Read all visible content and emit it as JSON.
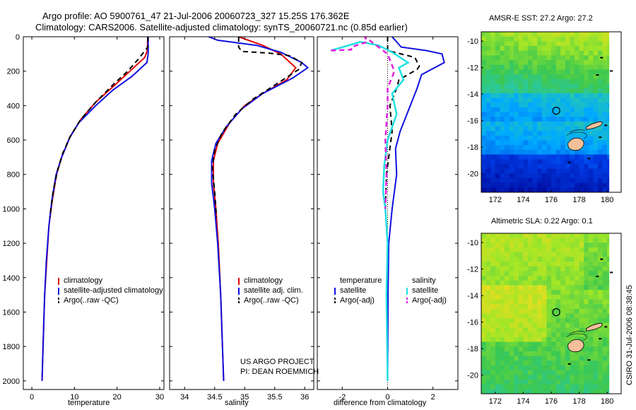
{
  "header": {
    "title_line1": "Argo profile: AO 5900761_47 21-Jul-2006 20060723_327 15.25S 176.362E",
    "title_line2": "Climatology: CARS2006. Satellite-adjusted climatology: synTS_20060721.nc (0.85d earlier)"
  },
  "credit": {
    "line1": "US ARGO PROJECT",
    "line2": "PI: DEAN ROEMMICH",
    "timestamp": "CSIRO 31-Jul-2006 08:38:45"
  },
  "colors": {
    "climatology": "#e00000",
    "satellite": "#1010e0",
    "argo": "#000000",
    "sat_sal": "#20e0e0",
    "argo_sal": "#e020e0",
    "land": "#f4c09a"
  },
  "chart_data": [
    {
      "type": "line",
      "name": "temperature-profile",
      "xlabel": "temperature",
      "ylabel": "",
      "xlim": [
        -2,
        31
      ],
      "ylim": [
        2050,
        0
      ],
      "y_reversed": true,
      "xticks": [
        0,
        10,
        20,
        30
      ],
      "yticks": [
        0,
        200,
        400,
        600,
        800,
        1000,
        1200,
        1400,
        1600,
        1800,
        2000
      ],
      "legend": [
        "climatology",
        "satellite-adjusted climatology",
        "Argo(..raw -QC)"
      ],
      "series": [
        {
          "name": "climatology",
          "points": [
            [
              27.2,
              0
            ],
            [
              27.1,
              80
            ],
            [
              26.5,
              120
            ],
            [
              23,
              200
            ],
            [
              19.5,
              280
            ],
            [
              15,
              380
            ],
            [
              11.5,
              480
            ],
            [
              9,
              580
            ],
            [
              7,
              700
            ],
            [
              5.8,
              800
            ],
            [
              4.8,
              950
            ],
            [
              4,
              1100
            ],
            [
              3.5,
              1300
            ],
            [
              3,
              1500
            ],
            [
              2.7,
              1750
            ],
            [
              2.4,
              2000
            ]
          ]
        },
        {
          "name": "satellite-adjusted climatology",
          "points": [
            [
              27.3,
              0
            ],
            [
              27.3,
              100
            ],
            [
              27,
              150
            ],
            [
              23.5,
              230
            ],
            [
              19,
              310
            ],
            [
              15,
              400
            ],
            [
              11,
              500
            ],
            [
              8.8,
              590
            ],
            [
              7,
              700
            ],
            [
              5.7,
              800
            ],
            [
              4.7,
              950
            ],
            [
              4,
              1100
            ],
            [
              3.4,
              1300
            ],
            [
              3,
              1500
            ],
            [
              2.7,
              1750
            ],
            [
              2.4,
              2000
            ]
          ]
        },
        {
          "name": "Argo(..raw -QC)",
          "points": [
            [
              27.2,
              0
            ],
            [
              27.2,
              60
            ],
            [
              25,
              130
            ],
            [
              22.5,
              200
            ],
            [
              19,
              280
            ],
            [
              15,
              380
            ],
            [
              11.5,
              480
            ],
            [
              9,
              580
            ],
            [
              7.2,
              680
            ],
            [
              6,
              780
            ],
            [
              5,
              900
            ],
            [
              4.2,
              1050
            ]
          ]
        }
      ]
    },
    {
      "type": "line",
      "name": "salinity-profile",
      "xlabel": "salinity",
      "ylabel": "",
      "xlim": [
        33.75,
        36.15
      ],
      "ylim": [
        2050,
        0
      ],
      "y_reversed": true,
      "xticks": [
        34,
        34.5,
        35,
        35.5,
        36
      ],
      "legend": [
        "climatology",
        "satellite adj. clim.",
        "Argo(..raw -QC)"
      ],
      "series": [
        {
          "name": "climatology",
          "points": [
            [
              34.9,
              0
            ],
            [
              35.3,
              50
            ],
            [
              35.6,
              100
            ],
            [
              35.85,
              180
            ],
            [
              35.7,
              250
            ],
            [
              35.3,
              330
            ],
            [
              35,
              400
            ],
            [
              34.75,
              500
            ],
            [
              34.55,
              620
            ],
            [
              34.48,
              720
            ],
            [
              34.48,
              850
            ],
            [
              34.52,
              1000
            ],
            [
              34.56,
              1200
            ],
            [
              34.6,
              1500
            ],
            [
              34.63,
              1800
            ],
            [
              34.65,
              2000
            ]
          ]
        },
        {
          "name": "satellite adj. clim.",
          "points": [
            [
              34.4,
              0
            ],
            [
              34.55,
              20
            ],
            [
              35.2,
              50
            ],
            [
              35.6,
              90
            ],
            [
              35.95,
              150
            ],
            [
              36.05,
              180
            ],
            [
              35.8,
              240
            ],
            [
              35.3,
              330
            ],
            [
              34.95,
              420
            ],
            [
              34.7,
              520
            ],
            [
              34.52,
              620
            ],
            [
              34.45,
              720
            ],
            [
              34.45,
              850
            ],
            [
              34.5,
              1000
            ],
            [
              34.55,
              1200
            ],
            [
              34.6,
              1500
            ],
            [
              34.63,
              1800
            ],
            [
              34.65,
              2000
            ]
          ]
        },
        {
          "name": "Argo(..raw -QC)",
          "points": [
            [
              34.9,
              0
            ],
            [
              34.9,
              60
            ],
            [
              34.95,
              85
            ],
            [
              35.4,
              95
            ],
            [
              35.75,
              110
            ],
            [
              35.95,
              150
            ],
            [
              35.9,
              190
            ],
            [
              35.55,
              270
            ],
            [
              35.15,
              360
            ],
            [
              34.85,
              450
            ],
            [
              34.62,
              560
            ],
            [
              34.5,
              660
            ],
            [
              34.46,
              760
            ],
            [
              34.5,
              900
            ],
            [
              34.53,
              1050
            ]
          ]
        }
      ]
    },
    {
      "type": "line",
      "name": "difference-profile",
      "xlabel": "difference from climatology",
      "ylabel": "",
      "xlim": [
        -3.1,
        3.1
      ],
      "ylim": [
        2050,
        0
      ],
      "y_reversed": true,
      "xticks": [
        -2,
        0,
        2
      ],
      "legend_groups": [
        "temperature",
        "salinity"
      ],
      "legend": [
        "satellite",
        "Argo(-adj)",
        "satellite",
        "Argo(-adj)"
      ],
      "series": [
        {
          "name": "temperature satellite",
          "points": [
            [
              0.2,
              0
            ],
            [
              0.6,
              60
            ],
            [
              1.7,
              80
            ],
            [
              2.4,
              100
            ],
            [
              2.5,
              150
            ],
            [
              1.5,
              220
            ],
            [
              1.3,
              300
            ],
            [
              1,
              400
            ],
            [
              0.55,
              550
            ],
            [
              0.35,
              650
            ],
            [
              0.4,
              800
            ],
            [
              0.2,
              1000
            ],
            [
              0.05,
              1200
            ],
            [
              0.02,
              1500
            ],
            [
              0,
              2000
            ]
          ]
        },
        {
          "name": "temperature Argo(-adj)",
          "points": [
            [
              0,
              0
            ],
            [
              0,
              80
            ],
            [
              1.2,
              120
            ],
            [
              1.4,
              170
            ],
            [
              1.3,
              190
            ],
            [
              0.5,
              250
            ],
            [
              0.4,
              300
            ],
            [
              0.1,
              400
            ],
            [
              0.2,
              550
            ],
            [
              0.1,
              650
            ],
            [
              -0.05,
              800
            ],
            [
              -0.1,
              1000
            ]
          ]
        },
        {
          "name": "salinity satellite",
          "points": [
            [
              -2.5,
              80
            ],
            [
              -1.2,
              30
            ],
            [
              -0.4,
              50
            ],
            [
              0.2,
              90
            ],
            [
              0.9,
              150
            ],
            [
              0.5,
              180
            ],
            [
              0.7,
              250
            ],
            [
              0.2,
              330
            ],
            [
              0.4,
              450
            ],
            [
              0,
              600
            ],
            [
              -0.15,
              750
            ],
            [
              -0.2,
              900
            ],
            [
              -0.1,
              1000
            ],
            [
              0,
              1200
            ],
            [
              -0.05,
              1500
            ],
            [
              0,
              2000
            ]
          ]
        },
        {
          "name": "salinity Argo(-adj)",
          "points": [
            [
              -2.5,
              80
            ],
            [
              -1.6,
              75
            ],
            [
              -1.6,
              60
            ],
            [
              -0.9,
              30
            ],
            [
              -1,
              0
            ],
            [
              -0.4,
              60
            ],
            [
              0,
              100
            ],
            [
              0.3,
              200
            ],
            [
              0,
              300
            ],
            [
              0,
              400
            ],
            [
              -0.1,
              600
            ],
            [
              -0.05,
              800
            ],
            [
              -0.1,
              1000
            ]
          ]
        }
      ]
    },
    {
      "type": "heatmap",
      "name": "sst-map",
      "title": "AMSR-E SST: 27.2 Argo: 27.2",
      "xticks": [
        172,
        174,
        176,
        178,
        180
      ],
      "yticks": [
        -10,
        -12,
        -14,
        -16,
        -18,
        -20
      ],
      "argo_position": [
        176.362,
        -15.25
      ]
    },
    {
      "type": "heatmap",
      "name": "sla-map",
      "title": "Altimetric SLA: 0.22 Argo: 0.1",
      "xticks": [
        172,
        174,
        176,
        178,
        180
      ],
      "yticks": [
        -10,
        -12,
        -14,
        -16,
        -18,
        -20
      ],
      "argo_position": [
        176.362,
        -15.25
      ]
    }
  ]
}
